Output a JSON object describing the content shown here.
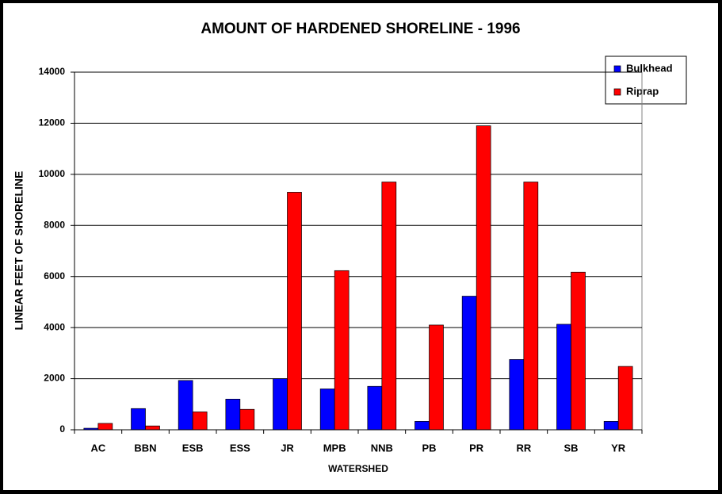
{
  "chart_data": {
    "type": "bar",
    "title": "AMOUNT OF HARDENED SHORELINE - 1996",
    "x_label": "WATERSHED",
    "y_label": "LINEAR FEET OF SHORELINE",
    "categories": [
      "AC",
      "BBN",
      "ESB",
      "ESS",
      "JR",
      "MPB",
      "NNB",
      "PB",
      "PR",
      "RR",
      "SB",
      "YR"
    ],
    "series": [
      {
        "name": "Bulkhead",
        "color": "#0000ff",
        "values": [
          60,
          830,
          1930,
          1200,
          2000,
          1600,
          1700,
          330,
          5230,
          2750,
          4130,
          330
        ]
      },
      {
        "name": "Riprap",
        "color": "#ff0000",
        "values": [
          250,
          150,
          700,
          800,
          9300,
          6230,
          9700,
          4100,
          11900,
          9700,
          6170,
          2480
        ]
      }
    ],
    "ylim": [
      0,
      14000
    ],
    "yticks": [
      0,
      2000,
      4000,
      6000,
      8000,
      10000,
      12000,
      14000
    ],
    "grid": true,
    "legend": "top-right"
  }
}
